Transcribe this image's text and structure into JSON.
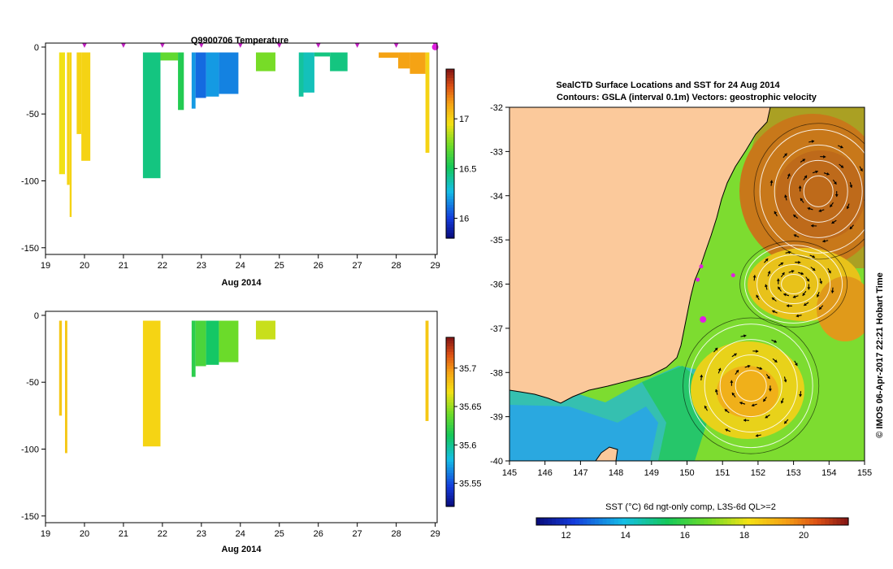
{
  "chart_data": [
    {
      "type": "heatmap",
      "title": "Q9900706  Temperature",
      "xlabel": "Aug 2014",
      "ylabel": "",
      "xlim": [
        19,
        29.05
      ],
      "ylim": [
        -155,
        3
      ],
      "x_ticks": [
        19,
        20,
        21,
        22,
        23,
        24,
        25,
        26,
        27,
        28,
        29
      ],
      "y_ticks": [
        0,
        -50,
        -100,
        -150
      ],
      "colorbar": {
        "range": [
          15.8,
          17.5
        ],
        "ticks": [
          16,
          16.5,
          17
        ]
      },
      "profile_markers": [
        20,
        21,
        22,
        23,
        24,
        25,
        26,
        27,
        28,
        29
      ],
      "profiles": [
        {
          "x0": 19.35,
          "x1": 19.5,
          "depth": -95,
          "value": 16.95
        },
        {
          "x0": 19.55,
          "x1": 19.62,
          "depth": -103,
          "value": 17.0
        },
        {
          "x0": 19.62,
          "x1": 19.67,
          "depth": -127,
          "value": 17.0
        },
        {
          "x0": 19.8,
          "x1": 19.92,
          "depth": -65,
          "value": 17.0
        },
        {
          "x0": 19.92,
          "x1": 20.15,
          "depth": -85,
          "value": 17.0
        },
        {
          "x0": 21.5,
          "x1": 21.95,
          "depth": -98,
          "value": 16.45
        },
        {
          "x0": 21.95,
          "x1": 22.4,
          "depth": -10,
          "value": 16.7
        },
        {
          "x0": 22.4,
          "x1": 22.55,
          "depth": -47,
          "value": 16.55
        },
        {
          "x0": 22.75,
          "x1": 22.85,
          "depth": -46,
          "value": 16.2
        },
        {
          "x0": 22.85,
          "x1": 23.12,
          "depth": -38,
          "value": 16.1
        },
        {
          "x0": 23.12,
          "x1": 23.45,
          "depth": -37,
          "value": 16.2
        },
        {
          "x0": 23.45,
          "x1": 23.95,
          "depth": -35,
          "value": 16.15
        },
        {
          "x0": 24.4,
          "x1": 24.9,
          "depth": -18,
          "value": 16.75
        },
        {
          "x0": 25.5,
          "x1": 25.62,
          "depth": -37,
          "value": 16.4
        },
        {
          "x0": 25.62,
          "x1": 25.9,
          "depth": -34,
          "value": 16.35
        },
        {
          "x0": 25.9,
          "x1": 26.3,
          "depth": -7,
          "value": 16.45
        },
        {
          "x0": 26.3,
          "x1": 26.75,
          "depth": -18,
          "value": 16.45
        },
        {
          "x0": 27.55,
          "x1": 28.05,
          "depth": -8,
          "value": 17.15
        },
        {
          "x0": 28.05,
          "x1": 28.35,
          "depth": -16,
          "value": 17.15
        },
        {
          "x0": 28.35,
          "x1": 28.75,
          "depth": -20,
          "value": 17.15
        },
        {
          "x0": 28.75,
          "x1": 28.85,
          "depth": -79,
          "value": 17.0
        }
      ]
    },
    {
      "type": "heatmap",
      "title": "",
      "xlabel": "Aug 2014",
      "ylabel": "",
      "xlim": [
        19,
        29.05
      ],
      "ylim": [
        -155,
        3
      ],
      "x_ticks": [
        19,
        20,
        21,
        22,
        23,
        24,
        25,
        26,
        27,
        28,
        29
      ],
      "y_ticks": [
        0,
        -50,
        -100,
        -150
      ],
      "colorbar": {
        "range": [
          35.52,
          35.74
        ],
        "ticks": [
          35.55,
          35.6,
          35.65,
          35.7
        ]
      },
      "profiles": [
        {
          "x0": 19.35,
          "x1": 19.42,
          "depth": -75,
          "value": 35.68
        },
        {
          "x0": 19.5,
          "x1": 19.56,
          "depth": -103,
          "value": 35.68
        },
        {
          "x0": 21.5,
          "x1": 21.95,
          "depth": -98,
          "value": 35.675
        },
        {
          "x0": 22.75,
          "x1": 22.85,
          "depth": -46,
          "value": 35.62
        },
        {
          "x0": 22.85,
          "x1": 23.12,
          "depth": -38,
          "value": 35.63
        },
        {
          "x0": 23.12,
          "x1": 23.45,
          "depth": -37,
          "value": 35.61
        },
        {
          "x0": 23.45,
          "x1": 23.95,
          "depth": -35,
          "value": 35.64
        },
        {
          "x0": 24.4,
          "x1": 24.9,
          "depth": -18,
          "value": 35.66
        },
        {
          "x0": 28.75,
          "x1": 28.83,
          "depth": -79,
          "value": 35.68
        }
      ]
    },
    {
      "type": "heatmap",
      "title": "SealCTD Surface Locations and SST for 24 Aug 2014",
      "subtitle": "Contours: GSLA (interval 0.1m) Vectors: geostrophic velocity",
      "xlabel": "",
      "ylabel": "",
      "xlim": [
        145,
        155
      ],
      "ylim": [
        -40,
        -32
      ],
      "x_ticks": [
        145,
        146,
        147,
        148,
        149,
        150,
        151,
        152,
        153,
        154,
        155
      ],
      "y_ticks": [
        -32,
        -33,
        -34,
        -35,
        -36,
        -37,
        -38,
        -39,
        -40
      ],
      "colorbar": {
        "label": "SST (°C) 6d ngt-only comp, L3S-6d QL>=2",
        "range": [
          11,
          21.5
        ],
        "ticks": [
          12,
          14,
          16,
          18,
          20
        ]
      },
      "eddies": [
        {
          "lon": 153.7,
          "lat": -33.9,
          "direction": "anticlockwise"
        },
        {
          "lon": 153.0,
          "lat": -36.0,
          "direction": "anticlockwise"
        },
        {
          "lon": 151.8,
          "lat": -38.3,
          "direction": "anticlockwise"
        }
      ],
      "seal_locations": [
        {
          "lon": 150.45,
          "lat": -36.8
        },
        {
          "lon": 150.3,
          "lat": -35.9
        },
        {
          "lon": 150.4,
          "lat": -35.6
        },
        {
          "lon": 151.3,
          "lat": -35.8
        }
      ],
      "credit": "© IMOS 06-Apr-2017 22:21 Hobart Time"
    }
  ]
}
